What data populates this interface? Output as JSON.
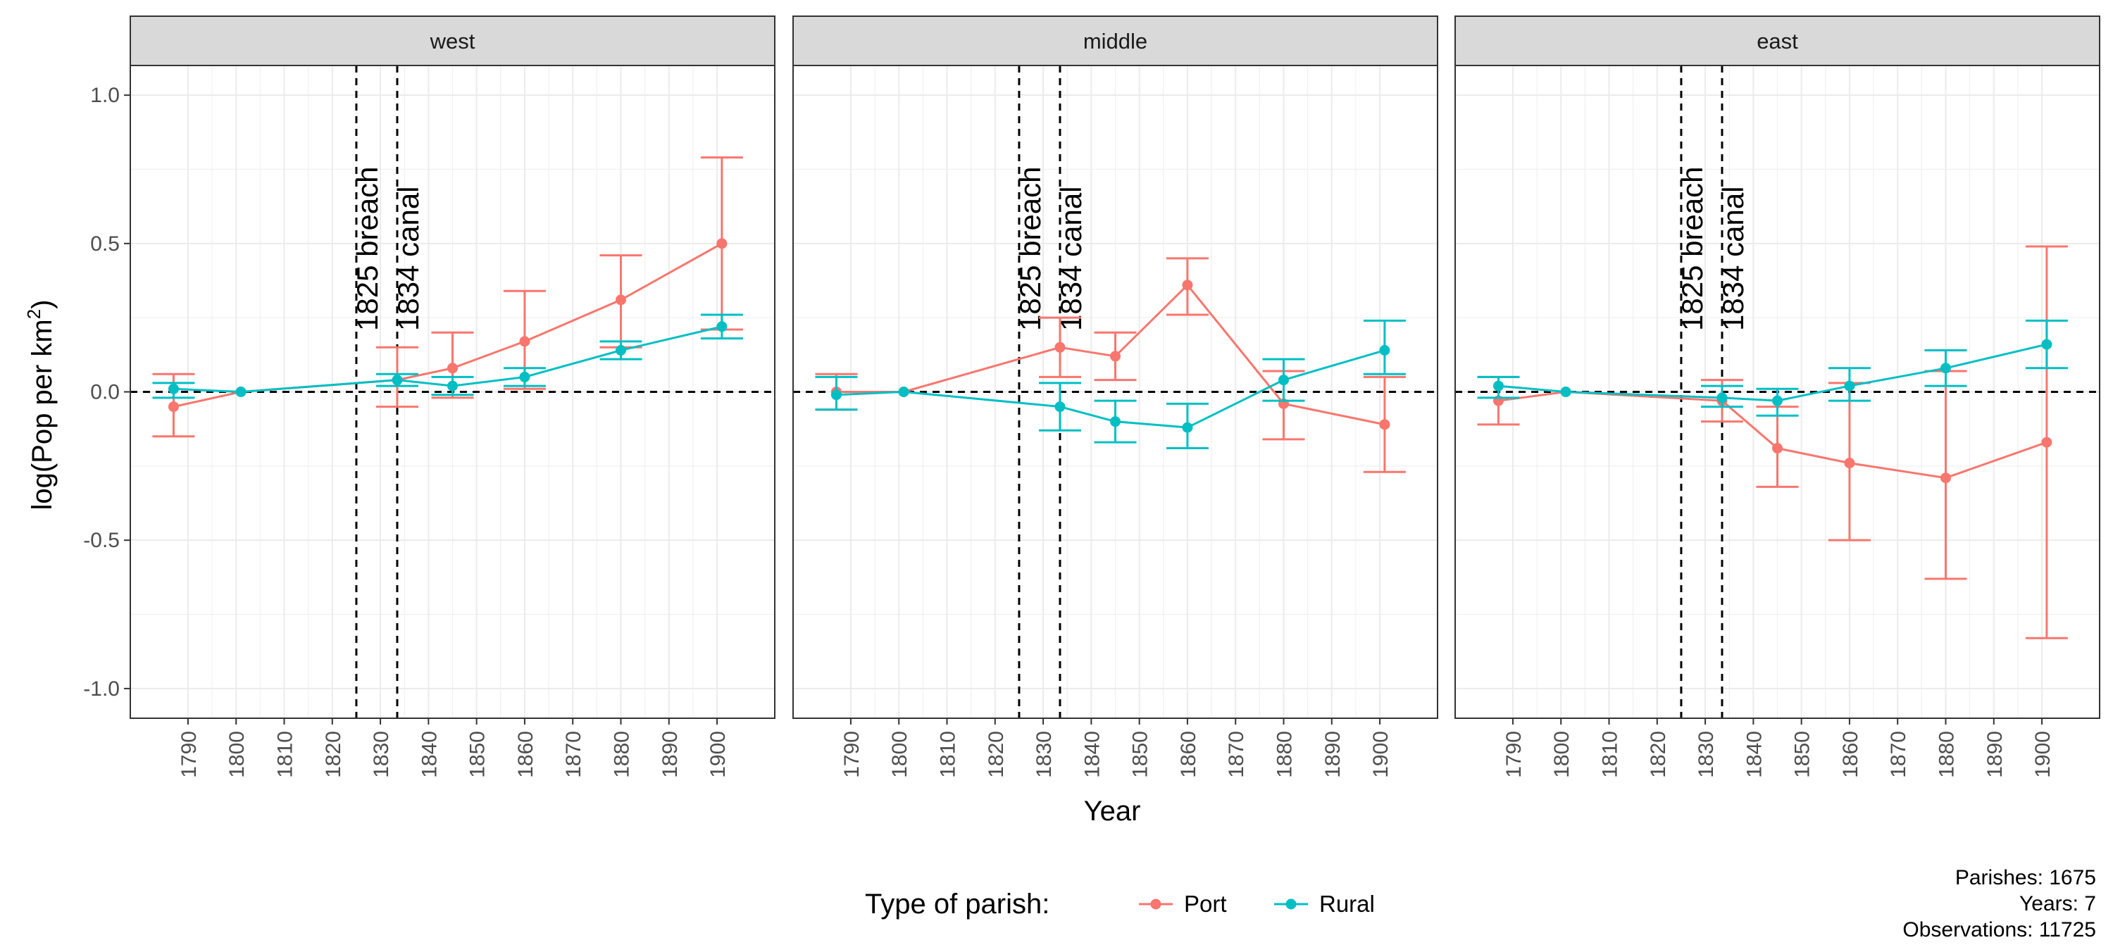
{
  "chart_data": {
    "type": "line",
    "facet_by": "region",
    "xlabel": "Year",
    "ylabel": "log(Pop per km",
    "ylabel_superscript": "2",
    "ylabel_close": ")",
    "ylim": [
      -1.1,
      1.1
    ],
    "xlim": [
      1778,
      1912
    ],
    "y_ticks": [
      1.0,
      0.5,
      0.0,
      -0.5,
      -1.0
    ],
    "y_tick_labels": [
      "1.0",
      "0.5",
      "0.0",
      "-0.5",
      "-1.0"
    ],
    "x_ticks": [
      1790,
      1800,
      1810,
      1820,
      1830,
      1840,
      1850,
      1860,
      1870,
      1880,
      1890,
      1900
    ],
    "grid": true,
    "reference_lines": {
      "horizontal": 0,
      "vertical": [
        {
          "x": 1825,
          "label": "1825 breach"
        },
        {
          "x": 1833.5,
          "label": "1834 canal"
        }
      ]
    },
    "legend": {
      "title": "Type of parish:",
      "position": "bottom",
      "entries": [
        {
          "name": "Port",
          "color": "#F8766D"
        },
        {
          "name": "Rural",
          "color": "#00BFC4"
        }
      ]
    },
    "caption": [
      "Parishes: 1675",
      "Years: 7",
      "Observations: 11725"
    ],
    "panels": [
      {
        "title": "west",
        "series": [
          {
            "name": "Port",
            "color": "#F8766D",
            "points": [
              {
                "x": 1787,
                "y": -0.05,
                "lo": -0.15,
                "hi": 0.06
              },
              {
                "x": 1801,
                "y": 0.0
              },
              {
                "x": 1833.5,
                "y": 0.04,
                "lo": -0.05,
                "hi": 0.15
              },
              {
                "x": 1845,
                "y": 0.08,
                "lo": -0.02,
                "hi": 0.2
              },
              {
                "x": 1860,
                "y": 0.17,
                "lo": 0.01,
                "hi": 0.34
              },
              {
                "x": 1880,
                "y": 0.31,
                "lo": 0.15,
                "hi": 0.46
              },
              {
                "x": 1901,
                "y": 0.5,
                "lo": 0.21,
                "hi": 0.79
              }
            ]
          },
          {
            "name": "Rural",
            "color": "#00BFC4",
            "points": [
              {
                "x": 1787,
                "y": 0.01,
                "lo": -0.02,
                "hi": 0.03
              },
              {
                "x": 1801,
                "y": 0.0
              },
              {
                "x": 1833.5,
                "y": 0.04,
                "lo": 0.02,
                "hi": 0.06
              },
              {
                "x": 1845,
                "y": 0.02,
                "lo": -0.01,
                "hi": 0.05
              },
              {
                "x": 1860,
                "y": 0.05,
                "lo": 0.02,
                "hi": 0.08
              },
              {
                "x": 1880,
                "y": 0.14,
                "lo": 0.11,
                "hi": 0.17
              },
              {
                "x": 1901,
                "y": 0.22,
                "lo": 0.18,
                "hi": 0.26
              }
            ]
          }
        ]
      },
      {
        "title": "middle",
        "series": [
          {
            "name": "Port",
            "color": "#F8766D",
            "points": [
              {
                "x": 1787,
                "y": 0.0,
                "lo": -0.06,
                "hi": 0.06
              },
              {
                "x": 1801,
                "y": 0.0
              },
              {
                "x": 1833.5,
                "y": 0.15,
                "lo": 0.05,
                "hi": 0.25
              },
              {
                "x": 1845,
                "y": 0.12,
                "lo": 0.04,
                "hi": 0.2
              },
              {
                "x": 1860,
                "y": 0.36,
                "lo": 0.26,
                "hi": 0.45
              },
              {
                "x": 1880,
                "y": -0.04,
                "lo": -0.16,
                "hi": 0.07
              },
              {
                "x": 1901,
                "y": -0.11,
                "lo": -0.27,
                "hi": 0.05
              }
            ]
          },
          {
            "name": "Rural",
            "color": "#00BFC4",
            "points": [
              {
                "x": 1787,
                "y": -0.01,
                "lo": -0.06,
                "hi": 0.05
              },
              {
                "x": 1801,
                "y": 0.0
              },
              {
                "x": 1833.5,
                "y": -0.05,
                "lo": -0.13,
                "hi": 0.03
              },
              {
                "x": 1845,
                "y": -0.1,
                "lo": -0.17,
                "hi": -0.03
              },
              {
                "x": 1860,
                "y": -0.12,
                "lo": -0.19,
                "hi": -0.04
              },
              {
                "x": 1880,
                "y": 0.04,
                "lo": -0.03,
                "hi": 0.11
              },
              {
                "x": 1901,
                "y": 0.14,
                "lo": 0.06,
                "hi": 0.24
              }
            ]
          }
        ]
      },
      {
        "title": "east",
        "series": [
          {
            "name": "Port",
            "color": "#F8766D",
            "points": [
              {
                "x": 1787,
                "y": -0.03,
                "lo": -0.11,
                "hi": 0.05
              },
              {
                "x": 1801,
                "y": 0.0
              },
              {
                "x": 1833.5,
                "y": -0.03,
                "lo": -0.1,
                "hi": 0.04
              },
              {
                "x": 1845,
                "y": -0.19,
                "lo": -0.32,
                "hi": -0.05
              },
              {
                "x": 1860,
                "y": -0.24,
                "lo": -0.5,
                "hi": 0.03
              },
              {
                "x": 1880,
                "y": -0.29,
                "lo": -0.63,
                "hi": 0.07
              },
              {
                "x": 1901,
                "y": -0.17,
                "lo": -0.83,
                "hi": 0.49
              }
            ]
          },
          {
            "name": "Rural",
            "color": "#00BFC4",
            "points": [
              {
                "x": 1787,
                "y": 0.02,
                "lo": -0.02,
                "hi": 0.05
              },
              {
                "x": 1801,
                "y": 0.0
              },
              {
                "x": 1833.5,
                "y": -0.02,
                "lo": -0.05,
                "hi": 0.02
              },
              {
                "x": 1845,
                "y": -0.03,
                "lo": -0.08,
                "hi": 0.01
              },
              {
                "x": 1860,
                "y": 0.02,
                "lo": -0.03,
                "hi": 0.08
              },
              {
                "x": 1880,
                "y": 0.08,
                "lo": 0.02,
                "hi": 0.14
              },
              {
                "x": 1901,
                "y": 0.16,
                "lo": 0.08,
                "hi": 0.24
              }
            ]
          }
        ]
      }
    ]
  }
}
